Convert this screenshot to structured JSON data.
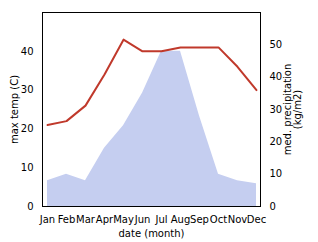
{
  "chart_data": {
    "type": "line",
    "categories": [
      "Jan",
      "Feb",
      "Mar",
      "Apr",
      "May",
      "Jun",
      "Jul",
      "Aug",
      "Sep",
      "Oct",
      "Nov",
      "Dec"
    ],
    "xlabel": "date (month)",
    "ylabel": "max temp (C)",
    "y2label": "med. precipitation\n(kg/m2)",
    "ylim": [
      0,
      50
    ],
    "yticks": [
      0,
      10,
      20,
      30,
      40
    ],
    "y2lim": [
      0,
      60
    ],
    "y2ticks": [
      0,
      10,
      20,
      30,
      40,
      50
    ],
    "grid": false,
    "series": [
      {
        "type": "area",
        "axis": "y2",
        "color": "#c5cef0",
        "values": [
          8,
          10,
          8,
          18,
          25,
          35,
          48,
          48,
          28,
          10,
          8,
          7
        ]
      },
      {
        "type": "line",
        "color": "#c0392b",
        "values": [
          21,
          22,
          26,
          34,
          43,
          40,
          40,
          41,
          41,
          41,
          36,
          30
        ]
      }
    ]
  }
}
